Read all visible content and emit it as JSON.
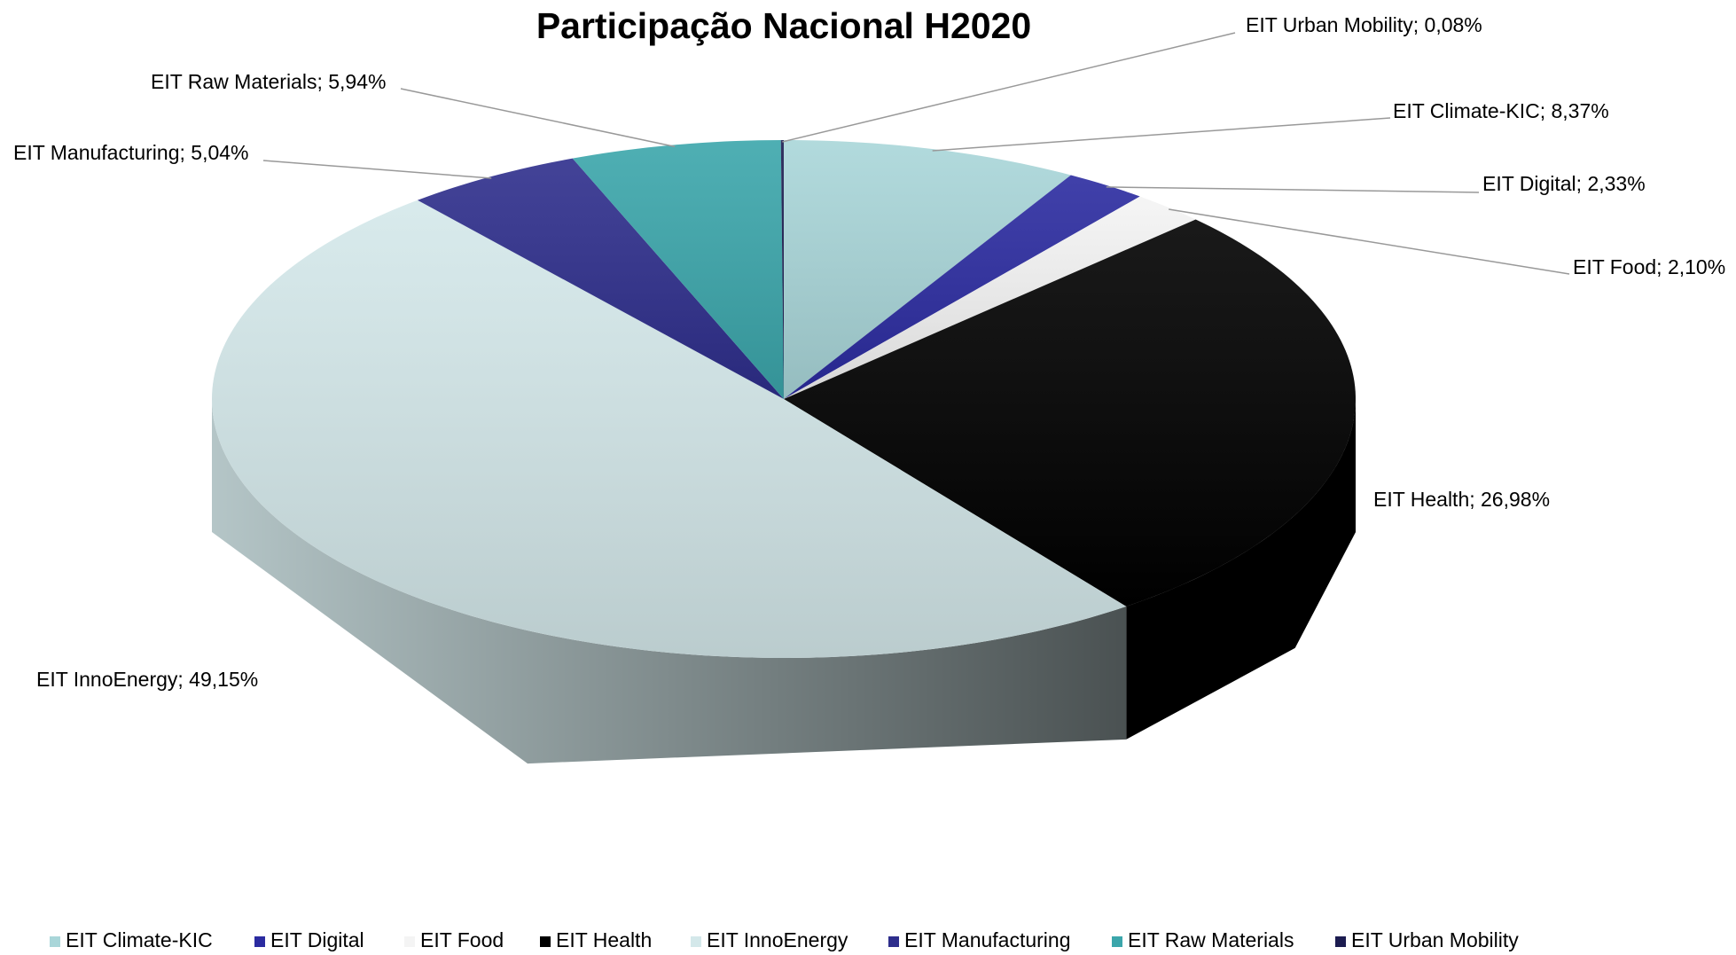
{
  "chart_data": {
    "type": "pie",
    "title": "Participação Nacional H2020",
    "categories": [
      "EIT Climate-KIC",
      "EIT Digital",
      "EIT Food",
      "EIT Health",
      "EIT InnoEnergy",
      "EIT Manufacturing",
      "EIT Raw Materials",
      "EIT Urban Mobility"
    ],
    "values": [
      8.37,
      2.33,
      2.1,
      26.98,
      49.15,
      5.04,
      5.94,
      0.08
    ],
    "value_labels": [
      "EIT Climate-KIC; 8,37%",
      "EIT Digital; 2,33%",
      "EIT Food; 2,10%",
      "EIT Health; 26,98%",
      "EIT InnoEnergy; 49,15%",
      "EIT Manufacturing; 5,04%",
      "EIT Raw Materials; 5,94%",
      "EIT Urban Mobility; 0,08%"
    ],
    "colors": [
      "#a9d6d9",
      "#2b2ba0",
      "#f4f4f4",
      "#000000",
      "#d4e8ea",
      "#2e2e8c",
      "#3ba6ab",
      "#1c1c50"
    ],
    "legend": "bottom"
  }
}
